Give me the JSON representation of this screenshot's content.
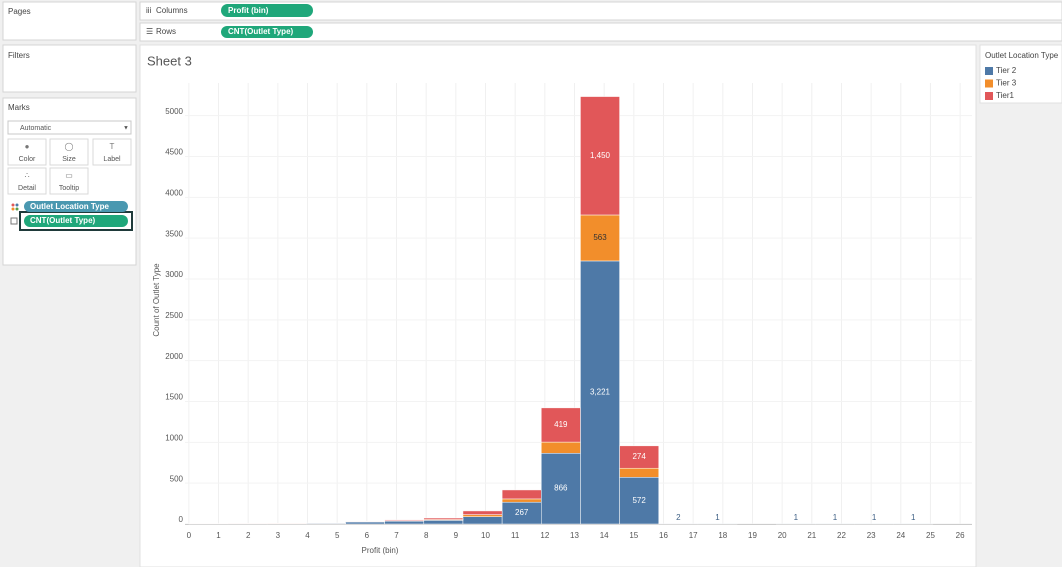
{
  "ui": {
    "pages": "Pages",
    "filters": "Filters",
    "marks": "Marks",
    "mark_type": "Automatic",
    "buttons": [
      "Color",
      "Size",
      "Label",
      "Detail",
      "Tooltip"
    ],
    "mark_pills": [
      "Outlet Location Type",
      "CNT(Outlet Type)"
    ],
    "columns": {
      "label": "Columns",
      "pill": "Profit (bin)"
    },
    "rows": {
      "label": "Rows",
      "pill": "CNT(Outlet Type)"
    }
  },
  "chart_data": {
    "type": "histogram",
    "stacked": true,
    "title": "Sheet 3",
    "x_label": "Profit (bin)",
    "y_label": "Count of Outlet Type",
    "legend_title": "Outlet Location Type",
    "bins": [
      0,
      1.32,
      2.64,
      3.96,
      5.28,
      6.6,
      7.92,
      9.24,
      10.56,
      11.88,
      13.2,
      14.52,
      15.84,
      17.16,
      18.48,
      19.8,
      21.12,
      22.44,
      23.76,
      25.08,
      26.4
    ],
    "series": [
      {
        "name": "Tier 2",
        "color": "#4e79a7",
        "values": [
          3,
          4,
          5,
          8,
          25,
          35,
          45,
          90,
          267,
          866,
          3221,
          572,
          2,
          1,
          0,
          1,
          1,
          1,
          1,
          0
        ],
        "value_labels": [
          null,
          null,
          null,
          null,
          null,
          null,
          null,
          null,
          "267",
          "866",
          "3,221",
          "572",
          "2",
          "1",
          null,
          "1",
          "1",
          "1",
          "1",
          null
        ]
      },
      {
        "name": "Tier 3",
        "color": "#f28e2b",
        "values": [
          1,
          1,
          1,
          2,
          4,
          5,
          10,
          25,
          40,
          137,
          563,
          111,
          0,
          0,
          0,
          0,
          0,
          0,
          0,
          0
        ],
        "value_labels": [
          null,
          null,
          null,
          null,
          null,
          null,
          null,
          null,
          null,
          null,
          "563",
          null,
          null,
          null,
          null,
          null,
          null,
          null,
          null,
          null
        ]
      },
      {
        "name": "Tier1",
        "color": "#e15759",
        "values": [
          1,
          1,
          2,
          2,
          6,
          10,
          18,
          45,
          110,
          419,
          1450,
          274,
          0,
          0,
          0,
          0,
          0,
          0,
          0,
          0
        ],
        "value_labels": [
          null,
          null,
          null,
          null,
          null,
          null,
          null,
          null,
          null,
          "419",
          "1,450",
          "274",
          null,
          null,
          null,
          null,
          null,
          null,
          null,
          null
        ]
      }
    ],
    "xlim": [
      -0.13,
      26.4
    ],
    "xticks": [
      0,
      1,
      2,
      3,
      4,
      5,
      6,
      7,
      8,
      9,
      10,
      11,
      12,
      13,
      14,
      15,
      16,
      17,
      18,
      19,
      20,
      21,
      22,
      23,
      24,
      25,
      26
    ],
    "ylim": [
      0,
      5400
    ],
    "yticks": [
      0,
      500,
      1000,
      1500,
      2000,
      2500,
      3000,
      3500,
      4000,
      4500,
      5000
    ],
    "grid": true,
    "legend": "right"
  }
}
